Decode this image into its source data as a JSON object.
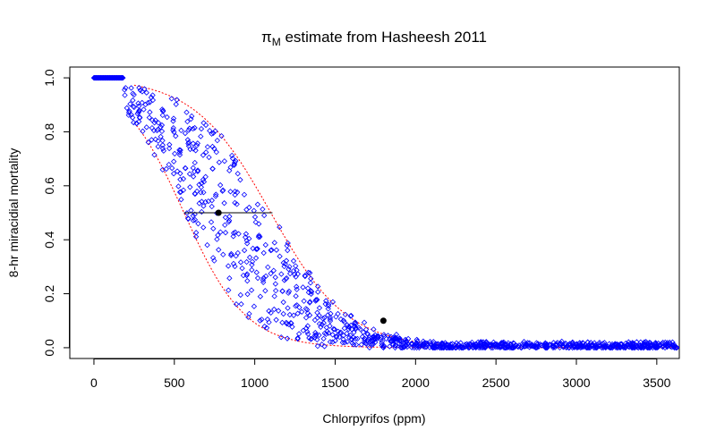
{
  "chart_data": {
    "type": "scatter",
    "title_symbol": "π",
    "title_subscript": "M",
    "title_rest": " estimate from Hasheesh 2011",
    "xlabel": "Chlorpyrifos (ppm)",
    "ylabel": "8-hr miracidial mortality",
    "xlim": [
      -150,
      3640
    ],
    "ylim": [
      -0.04,
      1.04
    ],
    "x_ticks": [
      0,
      500,
      1000,
      1500,
      2000,
      2500,
      3000,
      3500
    ],
    "y_ticks": [
      0.0,
      0.2,
      0.4,
      0.6,
      0.8,
      1.0
    ],
    "x_tick_labels": [
      "0",
      "500",
      "1000",
      "1500",
      "2000",
      "2500",
      "3000",
      "3500"
    ],
    "y_tick_labels": [
      "0.0",
      "0.2",
      "0.4",
      "0.6",
      "0.8",
      "1.0"
    ],
    "grid": false,
    "legend": "none",
    "colors": {
      "points": "#0000ff",
      "interval": "#ff0000",
      "markers": "#000000"
    },
    "simulated_points": {
      "marker": "open-diamond",
      "model": "logistic",
      "flat_region": {
        "x_from": 0,
        "x_to": 180,
        "y": 1.0
      },
      "x_range": [
        180,
        3640
      ]
    },
    "confidence_band": {
      "style": "dotted",
      "upper": {
        "midpoint_ppm": 1100,
        "slope": 0.0042
      },
      "lower": {
        "midpoint_ppm": 560,
        "slope": 0.0052
      }
    },
    "observed_points": [
      {
        "x": 775,
        "y": 0.5
      },
      {
        "x": 1800,
        "y": 0.1
      }
    ],
    "lc50_segment": {
      "x_from": 560,
      "x_to": 1110,
      "y": 0.5
    }
  }
}
